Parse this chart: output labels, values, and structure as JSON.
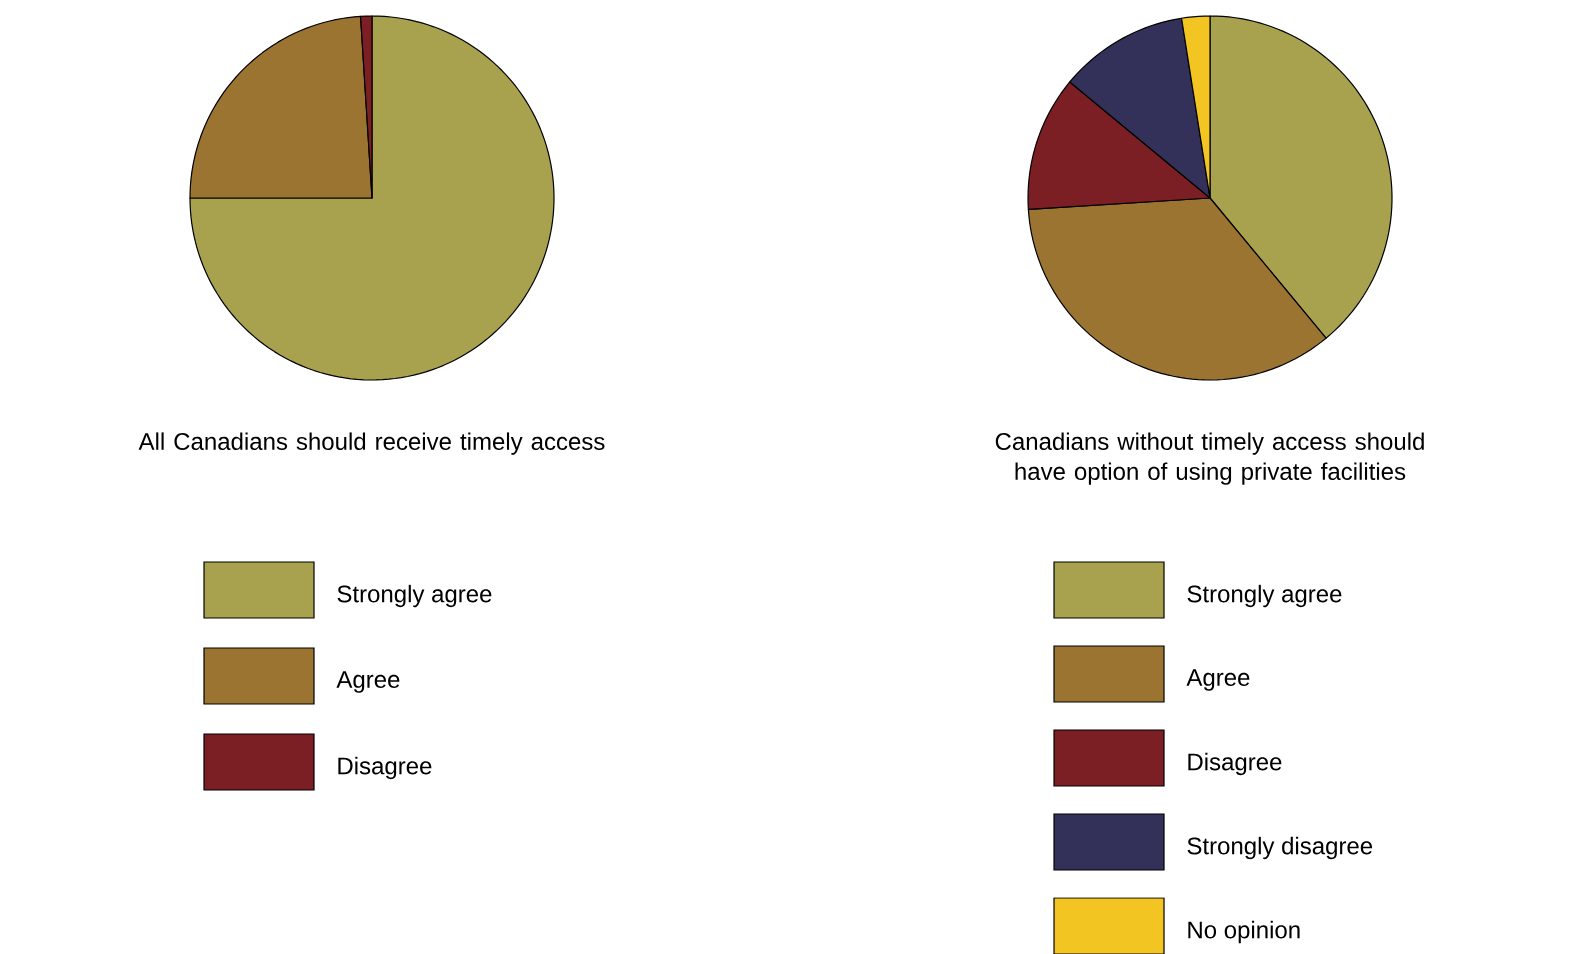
{
  "chart_data": [
    {
      "type": "pie",
      "title": "All Canadians should receive timely access",
      "categories": [
        "Strongly agree",
        "Agree",
        "Disagree"
      ],
      "values": [
        75,
        24,
        1
      ],
      "colors": [
        "#a8a24f",
        "#9a7430",
        "#7c1f25"
      ],
      "legend": "bottom"
    },
    {
      "type": "pie",
      "title": "Canadians without timely access should have option of using private facilities",
      "categories": [
        "Strongly agree",
        "Agree",
        "Disagree",
        "Strongly disagree",
        "No opinion"
      ],
      "values": [
        39,
        35,
        12,
        11.5,
        2.5
      ],
      "colors": [
        "#a8a24f",
        "#9a7430",
        "#7c1f25",
        "#33305a",
        "#f2c522"
      ],
      "legend": "bottom"
    }
  ]
}
